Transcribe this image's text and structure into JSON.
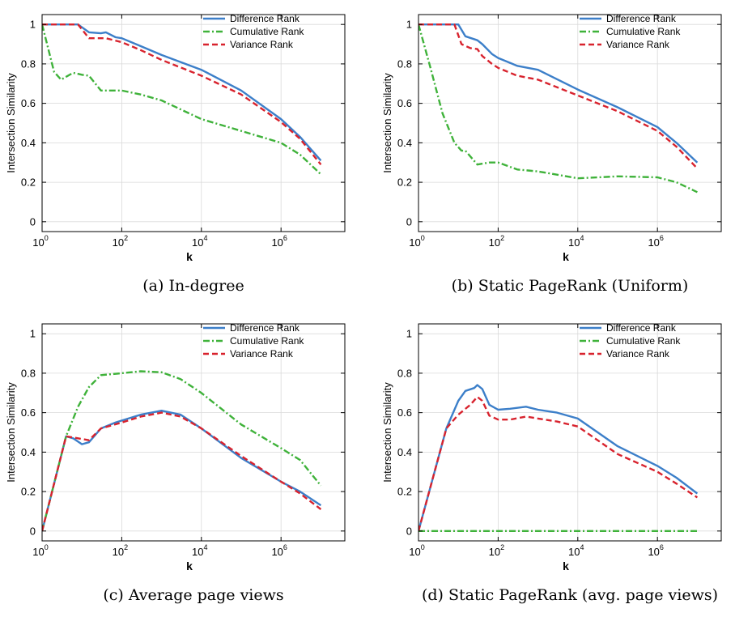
{
  "chart_data": [
    {
      "type": "line",
      "caption": "(a) In-degree",
      "xlabel": "k",
      "ylabel": "Intersection Similarity",
      "xscale": "log",
      "xlim": [
        1,
        40000000
      ],
      "ylim": [
        -0.05,
        1.05
      ],
      "xticks": [
        {
          "v": 1,
          "b": "10",
          "e": "0"
        },
        {
          "v": 100,
          "b": "10",
          "e": "2"
        },
        {
          "v": 10000,
          "b": "10",
          "e": "4"
        },
        {
          "v": 1000000,
          "b": "10",
          "e": "6"
        }
      ],
      "yticks": [
        0,
        0.2,
        0.4,
        0.6,
        0.8,
        1
      ],
      "ytick_labels": [
        "0",
        "0.2",
        "0.4",
        "0.6",
        "0.8",
        "1"
      ],
      "grid": true,
      "legend": "top-right",
      "series": [
        {
          "name": "Difference Rank",
          "color": "#3c7fc9",
          "dash": "solid",
          "points": [
            [
              1,
              1
            ],
            [
              8,
              1
            ],
            [
              15,
              0.96
            ],
            [
              30,
              0.955
            ],
            [
              40,
              0.96
            ],
            [
              70,
              0.935
            ],
            [
              100,
              0.93
            ],
            [
              300,
              0.89
            ],
            [
              1000,
              0.845
            ],
            [
              10000,
              0.77
            ],
            [
              100000,
              0.665
            ],
            [
              1000000,
              0.52
            ],
            [
              3000000,
              0.43
            ],
            [
              10000000,
              0.31
            ]
          ]
        },
        {
          "name": "Cumulative Rank",
          "color": "#3fb23a",
          "dash": "dashdot",
          "points": [
            [
              1,
              1
            ],
            [
              2,
              0.76
            ],
            [
              3,
              0.72
            ],
            [
              6,
              0.755
            ],
            [
              10,
              0.745
            ],
            [
              15,
              0.74
            ],
            [
              30,
              0.665
            ],
            [
              100,
              0.665
            ],
            [
              300,
              0.645
            ],
            [
              1000,
              0.615
            ],
            [
              10000,
              0.52
            ],
            [
              100000,
              0.46
            ],
            [
              1000000,
              0.4
            ],
            [
              3000000,
              0.34
            ],
            [
              10000000,
              0.24
            ]
          ]
        },
        {
          "name": "Variance Rank",
          "color": "#d8232e",
          "dash": "dash",
          "points": [
            [
              1,
              1
            ],
            [
              8,
              1
            ],
            [
              15,
              0.93
            ],
            [
              40,
              0.93
            ],
            [
              100,
              0.91
            ],
            [
              300,
              0.87
            ],
            [
              1000,
              0.82
            ],
            [
              10000,
              0.74
            ],
            [
              100000,
              0.645
            ],
            [
              1000000,
              0.505
            ],
            [
              3000000,
              0.42
            ],
            [
              10000000,
              0.29
            ]
          ]
        }
      ]
    },
    {
      "type": "line",
      "caption": "(b) Static PageRank (Uniform)",
      "xlabel": "k",
      "ylabel": "Intersection Similarity",
      "xscale": "log",
      "xlim": [
        1,
        40000000
      ],
      "ylim": [
        -0.05,
        1.05
      ],
      "xticks": [
        {
          "v": 1,
          "b": "10",
          "e": "0"
        },
        {
          "v": 100,
          "b": "10",
          "e": "2"
        },
        {
          "v": 10000,
          "b": "10",
          "e": "4"
        },
        {
          "v": 1000000,
          "b": "10",
          "e": "6"
        }
      ],
      "yticks": [
        0,
        0.2,
        0.4,
        0.6,
        0.8,
        1
      ],
      "ytick_labels": [
        "0",
        "0.2",
        "0.4",
        "0.6",
        "0.8",
        "1"
      ],
      "grid": true,
      "legend": "top-right",
      "series": [
        {
          "name": "Difference Rank",
          "color": "#3c7fc9",
          "dash": "solid",
          "points": [
            [
              1,
              1
            ],
            [
              10,
              1
            ],
            [
              15,
              0.94
            ],
            [
              30,
              0.92
            ],
            [
              40,
              0.9
            ],
            [
              70,
              0.85
            ],
            [
              100,
              0.83
            ],
            [
              300,
              0.79
            ],
            [
              1000,
              0.77
            ],
            [
              10000,
              0.67
            ],
            [
              100000,
              0.58
            ],
            [
              1000000,
              0.48
            ],
            [
              3000000,
              0.4
            ],
            [
              10000000,
              0.3
            ]
          ]
        },
        {
          "name": "Cumulative Rank",
          "color": "#3fb23a",
          "dash": "dashdot",
          "points": [
            [
              1,
              1
            ],
            [
              2,
              0.78
            ],
            [
              4,
              0.55
            ],
            [
              8,
              0.4
            ],
            [
              12,
              0.36
            ],
            [
              15,
              0.36
            ],
            [
              30,
              0.29
            ],
            [
              60,
              0.3
            ],
            [
              100,
              0.3
            ],
            [
              300,
              0.265
            ],
            [
              1000,
              0.255
            ],
            [
              10000,
              0.22
            ],
            [
              100000,
              0.23
            ],
            [
              1000000,
              0.225
            ],
            [
              3000000,
              0.2
            ],
            [
              10000000,
              0.15
            ]
          ]
        },
        {
          "name": "Variance Rank",
          "color": "#d8232e",
          "dash": "dash",
          "points": [
            [
              1,
              1
            ],
            [
              8,
              1
            ],
            [
              12,
              0.9
            ],
            [
              20,
              0.88
            ],
            [
              30,
              0.875
            ],
            [
              40,
              0.84
            ],
            [
              70,
              0.8
            ],
            [
              100,
              0.78
            ],
            [
              300,
              0.74
            ],
            [
              1000,
              0.72
            ],
            [
              10000,
              0.64
            ],
            [
              100000,
              0.56
            ],
            [
              1000000,
              0.46
            ],
            [
              3000000,
              0.38
            ],
            [
              10000000,
              0.27
            ]
          ]
        }
      ]
    },
    {
      "type": "line",
      "caption": "(c) Average page views",
      "xlabel": "k",
      "ylabel": "Intersection Similarity",
      "xscale": "log",
      "xlim": [
        1,
        40000000
      ],
      "ylim": [
        -0.05,
        1.05
      ],
      "xticks": [
        {
          "v": 1,
          "b": "10",
          "e": "0"
        },
        {
          "v": 100,
          "b": "10",
          "e": "2"
        },
        {
          "v": 10000,
          "b": "10",
          "e": "4"
        },
        {
          "v": 1000000,
          "b": "10",
          "e": "6"
        }
      ],
      "yticks": [
        0,
        0.2,
        0.4,
        0.6,
        0.8,
        1
      ],
      "ytick_labels": [
        "0",
        "0.2",
        "0.4",
        "0.6",
        "0.8",
        "1"
      ],
      "grid": true,
      "legend": "top-right",
      "series": [
        {
          "name": "Difference Rank",
          "color": "#3c7fc9",
          "dash": "solid",
          "points": [
            [
              1,
              0
            ],
            [
              4,
              0.48
            ],
            [
              6,
              0.47
            ],
            [
              10,
              0.44
            ],
            [
              15,
              0.45
            ],
            [
              30,
              0.52
            ],
            [
              70,
              0.55
            ],
            [
              100,
              0.56
            ],
            [
              300,
              0.59
            ],
            [
              1000,
              0.61
            ],
            [
              3000,
              0.59
            ],
            [
              10000,
              0.52
            ],
            [
              100000,
              0.37
            ],
            [
              1000000,
              0.25
            ],
            [
              3000000,
              0.2
            ],
            [
              10000000,
              0.13
            ]
          ]
        },
        {
          "name": "Cumulative Rank",
          "color": "#3fb23a",
          "dash": "dashdot",
          "points": [
            [
              1,
              0
            ],
            [
              4,
              0.48
            ],
            [
              8,
              0.63
            ],
            [
              15,
              0.73
            ],
            [
              30,
              0.79
            ],
            [
              100,
              0.8
            ],
            [
              300,
              0.81
            ],
            [
              1000,
              0.805
            ],
            [
              3000,
              0.77
            ],
            [
              10000,
              0.7
            ],
            [
              100000,
              0.54
            ],
            [
              1000000,
              0.42
            ],
            [
              3000000,
              0.36
            ],
            [
              10000000,
              0.23
            ]
          ]
        },
        {
          "name": "Variance Rank",
          "color": "#d8232e",
          "dash": "dash",
          "points": [
            [
              1,
              0
            ],
            [
              4,
              0.48
            ],
            [
              8,
              0.47
            ],
            [
              15,
              0.46
            ],
            [
              30,
              0.52
            ],
            [
              100,
              0.55
            ],
            [
              300,
              0.58
            ],
            [
              1000,
              0.6
            ],
            [
              3000,
              0.58
            ],
            [
              10000,
              0.52
            ],
            [
              100000,
              0.38
            ],
            [
              1000000,
              0.25
            ],
            [
              3000000,
              0.19
            ],
            [
              10000000,
              0.11
            ]
          ]
        }
      ]
    },
    {
      "type": "line",
      "caption": "(d) Static PageRank (avg. page views)",
      "xlabel": "k",
      "ylabel": "Intersection Similarity",
      "xscale": "log",
      "xlim": [
        1,
        40000000
      ],
      "ylim": [
        -0.05,
        1.05
      ],
      "xticks": [
        {
          "v": 1,
          "b": "10",
          "e": "0"
        },
        {
          "v": 100,
          "b": "10",
          "e": "2"
        },
        {
          "v": 10000,
          "b": "10",
          "e": "4"
        },
        {
          "v": 1000000,
          "b": "10",
          "e": "6"
        }
      ],
      "yticks": [
        0,
        0.2,
        0.4,
        0.6,
        0.8,
        1
      ],
      "ytick_labels": [
        "0",
        "0.2",
        "0.4",
        "0.6",
        "0.8",
        "1"
      ],
      "grid": true,
      "legend": "top-right",
      "series": [
        {
          "name": "Difference Rank",
          "color": "#3c7fc9",
          "dash": "solid",
          "points": [
            [
              1,
              0
            ],
            [
              5,
              0.52
            ],
            [
              10,
              0.66
            ],
            [
              15,
              0.71
            ],
            [
              25,
              0.725
            ],
            [
              30,
              0.74
            ],
            [
              40,
              0.72
            ],
            [
              60,
              0.64
            ],
            [
              100,
              0.615
            ],
            [
              200,
              0.62
            ],
            [
              500,
              0.63
            ],
            [
              1000,
              0.615
            ],
            [
              3000,
              0.6
            ],
            [
              10000,
              0.57
            ],
            [
              100000,
              0.43
            ],
            [
              1000000,
              0.33
            ],
            [
              3000000,
              0.27
            ],
            [
              10000000,
              0.19
            ]
          ]
        },
        {
          "name": "Cumulative Rank",
          "color": "#3fb23a",
          "dash": "dashdot",
          "points": [
            [
              1,
              0
            ],
            [
              10,
              0
            ],
            [
              100,
              0
            ],
            [
              10000,
              0
            ],
            [
              1000000,
              0
            ],
            [
              10000000,
              0
            ]
          ]
        },
        {
          "name": "Variance Rank",
          "color": "#d8232e",
          "dash": "dash",
          "points": [
            [
              1,
              0
            ],
            [
              5,
              0.52
            ],
            [
              10,
              0.59
            ],
            [
              20,
              0.64
            ],
            [
              30,
              0.68
            ],
            [
              40,
              0.66
            ],
            [
              60,
              0.585
            ],
            [
              100,
              0.565
            ],
            [
              200,
              0.565
            ],
            [
              500,
              0.58
            ],
            [
              1000,
              0.57
            ],
            [
              3000,
              0.555
            ],
            [
              10000,
              0.53
            ],
            [
              100000,
              0.39
            ],
            [
              1000000,
              0.3
            ],
            [
              3000000,
              0.24
            ],
            [
              10000000,
              0.17
            ]
          ]
        }
      ]
    }
  ]
}
